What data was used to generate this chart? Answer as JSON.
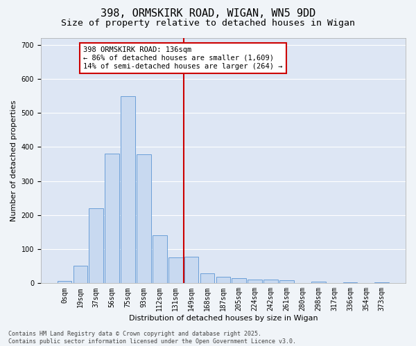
{
  "title_line1": "398, ORMSKIRK ROAD, WIGAN, WN5 9DD",
  "title_line2": "Size of property relative to detached houses in Wigan",
  "xlabel": "Distribution of detached houses by size in Wigan",
  "ylabel": "Number of detached properties",
  "bar_labels": [
    "0sqm",
    "19sqm",
    "37sqm",
    "56sqm",
    "75sqm",
    "93sqm",
    "112sqm",
    "131sqm",
    "149sqm",
    "168sqm",
    "187sqm",
    "205sqm",
    "224sqm",
    "242sqm",
    "261sqm",
    "280sqm",
    "298sqm",
    "317sqm",
    "336sqm",
    "354sqm",
    "373sqm"
  ],
  "bar_values": [
    7,
    52,
    220,
    380,
    550,
    378,
    140,
    76,
    77,
    29,
    18,
    14,
    10,
    10,
    8,
    0,
    4,
    0,
    2,
    0,
    3
  ],
  "bar_color": "#c8d9f0",
  "bar_edgecolor": "#6a9fd8",
  "vline_color": "#cc0000",
  "vline_index": 7.5,
  "annotation_text": "398 ORMSKIRK ROAD: 136sqm\n← 86% of detached houses are smaller (1,609)\n14% of semi-detached houses are larger (264) →",
  "annotation_box_color": "#ffffff",
  "annotation_box_edgecolor": "#cc0000",
  "ylim": [
    0,
    720
  ],
  "yticks": [
    0,
    100,
    200,
    300,
    400,
    500,
    600,
    700
  ],
  "fig_background": "#f0f4f8",
  "plot_background": "#dde6f4",
  "grid_color": "#ffffff",
  "footer_text": "Contains HM Land Registry data © Crown copyright and database right 2025.\nContains public sector information licensed under the Open Government Licence v3.0.",
  "title_fontsize": 11,
  "subtitle_fontsize": 9.5,
  "axis_label_fontsize": 8,
  "tick_fontsize": 7,
  "annotation_fontsize": 7.5
}
